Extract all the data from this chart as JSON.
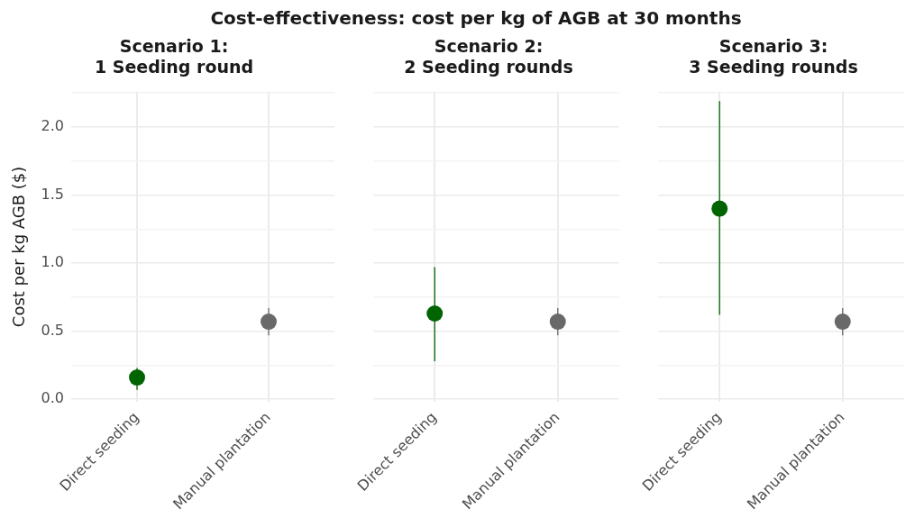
{
  "chart_data": [
    {
      "type": "scatter",
      "title": "Cost-effectiveness: cost per kg of AGB at 30 months",
      "subtitle": "Scenario 1:\n1 Seeding round",
      "ylabel": "Cost per kg AGB ($)",
      "categories": [
        "Direct seeding",
        "Manual plantation"
      ],
      "values": [
        0.16,
        0.57
      ],
      "colors": [
        "#006400",
        "#696969"
      ],
      "errors": [
        [
          0.07,
          0.23
        ],
        [
          0.47,
          0.67
        ]
      ],
      "ylim": [
        -0.02,
        2.26
      ],
      "yticks": [
        {
          "value": 0,
          "label": "0.0"
        },
        {
          "value": 0.25,
          "label": null
        },
        0.5,
        {
          "value": 0.75,
          "label": null
        },
        {
          "value": 1,
          "label": "1.0"
        },
        {
          "value": 1.25,
          "label": null
        },
        1.5,
        {
          "value": 1.75,
          "label": null
        },
        {
          "value": 2,
          "label": "2.0"
        },
        {
          "value": 2.25,
          "label": null
        }
      ],
      "grid": true,
      "marker": "circle"
    },
    {
      "type": "scatter",
      "subtitle": "Scenario 2:\n2 Seeding rounds",
      "categories": [
        "Direct seeding",
        "Manual plantation"
      ],
      "values": [
        0.63,
        0.57
      ],
      "colors": [
        "#006400",
        "#696969"
      ],
      "errors": [
        [
          0.28,
          0.97
        ],
        [
          0.47,
          0.67
        ]
      ],
      "ylim": [
        -0.02,
        2.26
      ],
      "yticks": [
        0,
        {
          "value": 0.25,
          "label": null
        },
        0.5,
        {
          "value": 0.75,
          "label": null
        },
        1,
        {
          "value": 1.25,
          "label": null
        },
        1.5,
        {
          "value": 1.75,
          "label": null
        },
        2,
        {
          "value": 2.25,
          "label": null
        }
      ],
      "grid": true,
      "marker": "circle",
      "tick_labels": "x"
    },
    {
      "type": "scatter",
      "subtitle": "Scenario 3:\n3 Seeding rounds",
      "categories": [
        "Direct seeding",
        "Manual plantation"
      ],
      "values": [
        1.4,
        0.57
      ],
      "colors": [
        "#006400",
        "#696969"
      ],
      "errors": [
        [
          0.62,
          2.19
        ],
        [
          0.47,
          0.67
        ]
      ],
      "ylim": [
        -0.02,
        2.26
      ],
      "yticks": [
        0,
        {
          "value": 0.25,
          "label": null
        },
        0.5,
        {
          "value": 0.75,
          "label": null
        },
        1,
        {
          "value": 1.25,
          "label": null
        },
        1.5,
        {
          "value": 1.75,
          "label": null
        },
        2,
        {
          "value": 2.25,
          "label": null
        }
      ],
      "grid": true,
      "marker": "circle",
      "tick_labels": "x"
    }
  ]
}
